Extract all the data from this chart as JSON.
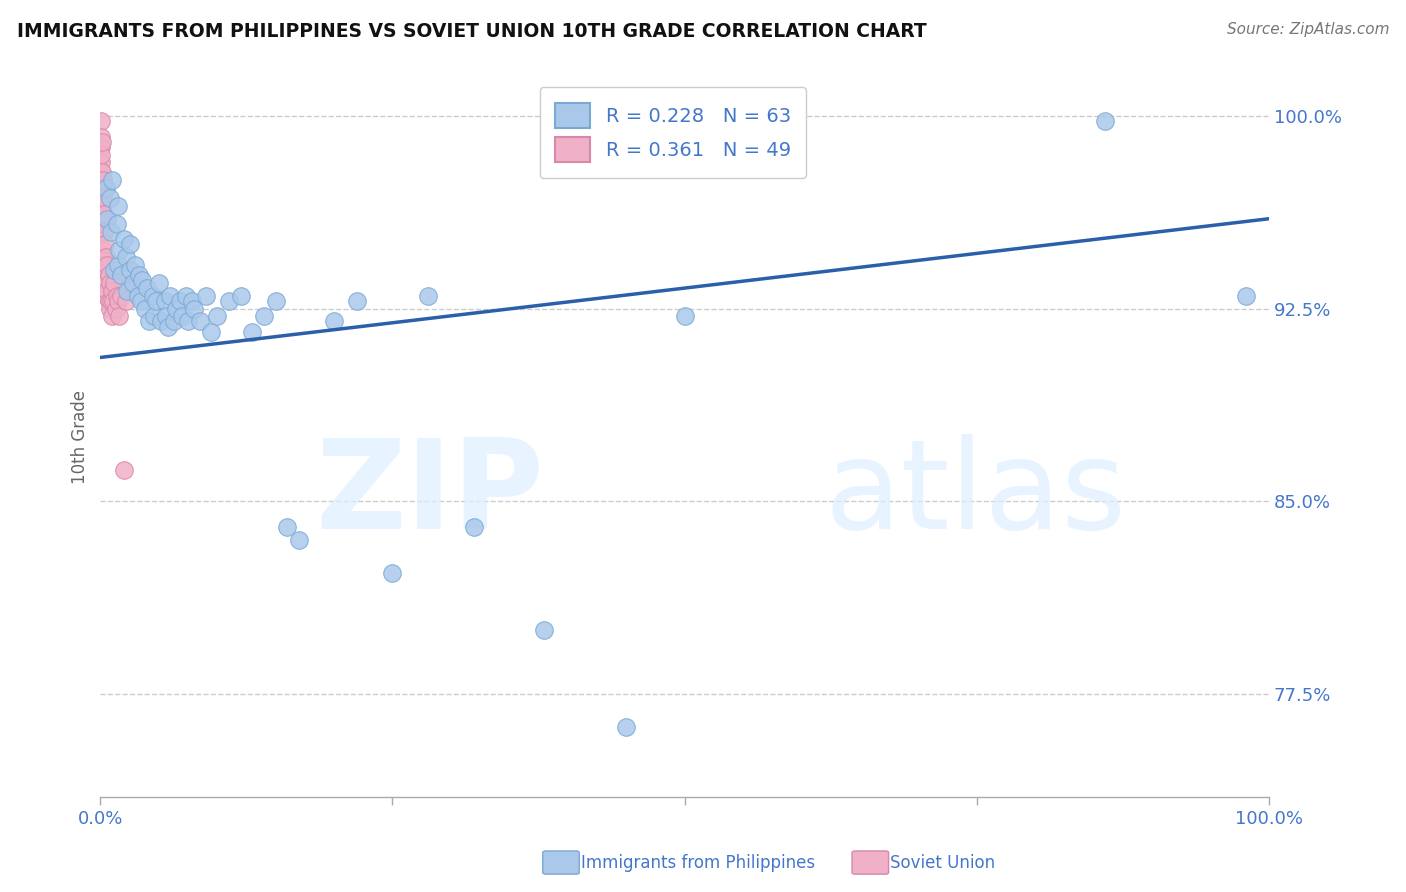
{
  "title": "IMMIGRANTS FROM PHILIPPINES VS SOVIET UNION 10TH GRADE CORRELATION CHART",
  "source": "Source: ZipAtlas.com",
  "ylabel": "10th Grade",
  "x_min": 0.0,
  "x_max": 1.0,
  "y_min": 0.735,
  "y_max": 1.015,
  "y_ticks": [
    0.775,
    0.85,
    0.925,
    1.0
  ],
  "y_tick_labels": [
    "77.5%",
    "85.0%",
    "92.5%",
    "100.0%"
  ],
  "x_ticks": [
    0.0,
    0.25,
    0.5,
    0.75,
    1.0
  ],
  "x_tick_labels": [
    "0.0%",
    "",
    "",
    "",
    "100.0%"
  ],
  "grid_color": "#cccccc",
  "background_color": "#ffffff",
  "philippines_color": "#aac8ea",
  "philippines_edge_color": "#7aaad4",
  "soviet_color": "#f0b0c8",
  "soviet_edge_color": "#d888a8",
  "trendline_color": "#2b5faa",
  "tick_color": "#4477cc",
  "title_color": "#111111",
  "source_color": "#777777",
  "legend_r_philippines": "R = 0.228",
  "legend_n_philippines": "N = 63",
  "legend_r_soviet": "R = 0.361",
  "legend_n_soviet": "N = 49",
  "philippines_label": "Immigrants from Philippines",
  "soviet_label": "Soviet Union",
  "watermark_text": "ZIP",
  "watermark_text2": "atlas",
  "trend_x0": 0.0,
  "trend_y0": 0.906,
  "trend_x1": 1.0,
  "trend_y1": 0.96,
  "philippines_x": [
    0.005,
    0.006,
    0.008,
    0.009,
    0.01,
    0.012,
    0.014,
    0.015,
    0.015,
    0.016,
    0.018,
    0.02,
    0.022,
    0.023,
    0.025,
    0.025,
    0.028,
    0.03,
    0.032,
    0.033,
    0.035,
    0.036,
    0.038,
    0.04,
    0.042,
    0.045,
    0.046,
    0.048,
    0.05,
    0.052,
    0.055,
    0.056,
    0.058,
    0.06,
    0.063,
    0.065,
    0.068,
    0.07,
    0.073,
    0.075,
    0.078,
    0.08,
    0.085,
    0.09,
    0.095,
    0.1,
    0.11,
    0.12,
    0.13,
    0.14,
    0.15,
    0.16,
    0.17,
    0.2,
    0.22,
    0.25,
    0.28,
    0.32,
    0.38,
    0.45,
    0.5,
    0.86,
    0.98
  ],
  "philippines_y": [
    0.972,
    0.96,
    0.968,
    0.955,
    0.975,
    0.94,
    0.958,
    0.965,
    0.942,
    0.948,
    0.938,
    0.952,
    0.945,
    0.932,
    0.94,
    0.95,
    0.935,
    0.942,
    0.93,
    0.938,
    0.928,
    0.936,
    0.925,
    0.933,
    0.92,
    0.93,
    0.922,
    0.928,
    0.935,
    0.92,
    0.928,
    0.922,
    0.918,
    0.93,
    0.92,
    0.925,
    0.928,
    0.922,
    0.93,
    0.92,
    0.928,
    0.925,
    0.92,
    0.93,
    0.916,
    0.922,
    0.928,
    0.93,
    0.916,
    0.922,
    0.928,
    0.84,
    0.835,
    0.92,
    0.928,
    0.822,
    0.93,
    0.84,
    0.8,
    0.762,
    0.922,
    0.998,
    0.93
  ],
  "soviet_x": [
    0.0003,
    0.0004,
    0.0005,
    0.0006,
    0.0007,
    0.0008,
    0.0009,
    0.001,
    0.001,
    0.001,
    0.0012,
    0.0013,
    0.0015,
    0.0015,
    0.0016,
    0.0018,
    0.002,
    0.002,
    0.002,
    0.002,
    0.0025,
    0.003,
    0.003,
    0.003,
    0.004,
    0.004,
    0.004,
    0.005,
    0.005,
    0.005,
    0.006,
    0.006,
    0.007,
    0.007,
    0.008,
    0.008,
    0.009,
    0.01,
    0.01,
    0.011,
    0.012,
    0.013,
    0.014,
    0.015,
    0.016,
    0.018,
    0.02,
    0.022,
    0.025
  ],
  "soviet_y": [
    0.998,
    0.992,
    0.988,
    0.982,
    0.978,
    0.972,
    0.985,
    0.975,
    0.965,
    0.99,
    0.968,
    0.978,
    0.96,
    0.972,
    0.955,
    0.965,
    0.958,
    0.948,
    0.968,
    0.975,
    0.945,
    0.955,
    0.942,
    0.962,
    0.94,
    0.95,
    0.935,
    0.94,
    0.93,
    0.945,
    0.932,
    0.942,
    0.928,
    0.938,
    0.925,
    0.935,
    0.928,
    0.932,
    0.922,
    0.928,
    0.935,
    0.925,
    0.93,
    0.928,
    0.922,
    0.93,
    0.862,
    0.928,
    0.935
  ]
}
